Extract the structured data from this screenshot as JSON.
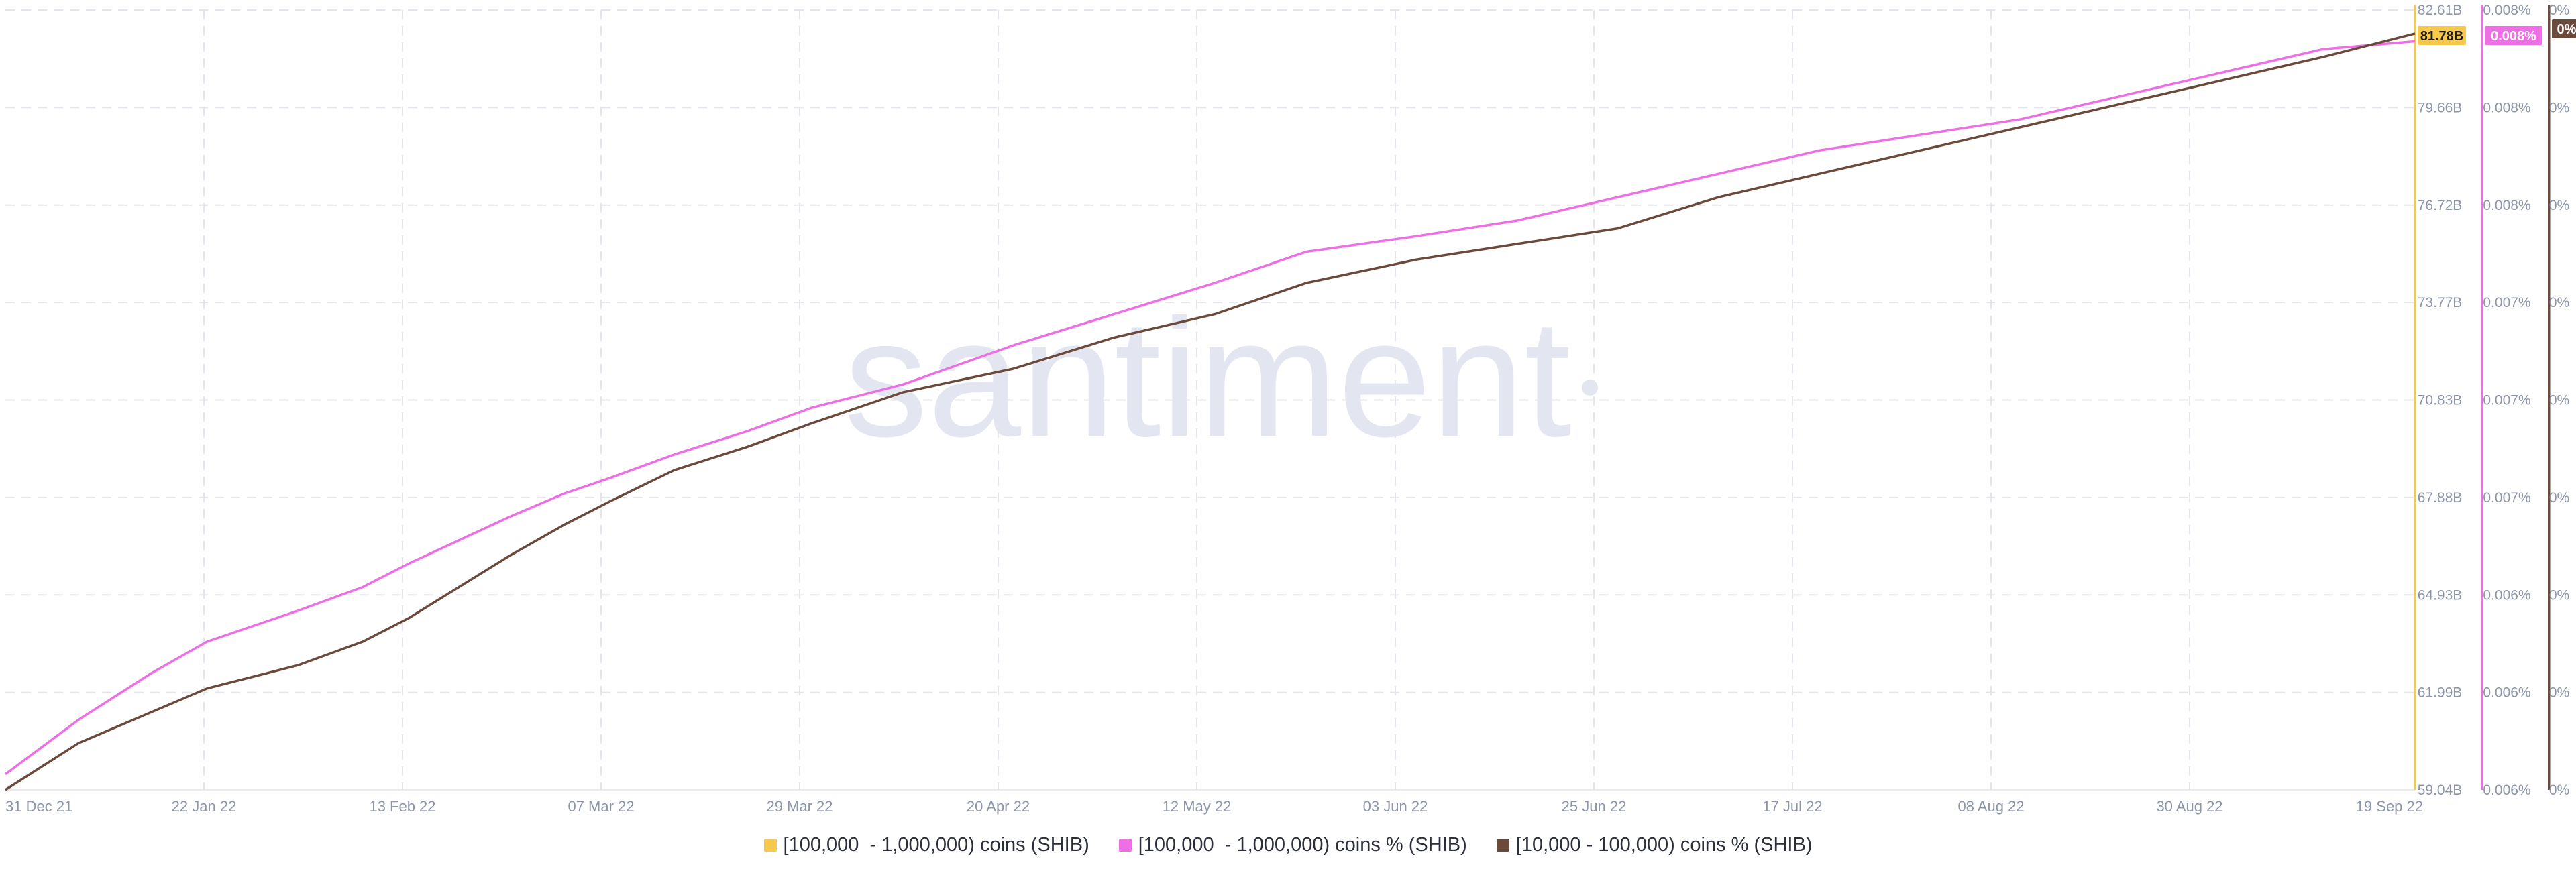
{
  "colors": {
    "background": "#ffffff",
    "grid": "#e4e6ec",
    "axis_text": "#8d95a9",
    "watermark": "#e3e6f0",
    "series_volume": "#f6c84c",
    "series_pct_large": "#ee6ee5",
    "series_pct_small": "#6b4a3c"
  },
  "watermark": "santiment",
  "legend": [
    {
      "label": "[100,000  - 1,000,000) coins (SHIB)",
      "color": "#f6c84c"
    },
    {
      "label": "[100,000  - 1,000,000) coins % (SHIB)",
      "color": "#ee6ee5"
    },
    {
      "label": "[10,000 - 100,000) coins % (SHIB)",
      "color": "#6b4a3c"
    }
  ],
  "chart_data": {
    "type": "line",
    "grid": true,
    "legend_position": "bottom-center",
    "x_ticks": [
      "31 Dec 21",
      "22 Jan 22",
      "13 Feb 22",
      "07 Mar 22",
      "29 Mar 22",
      "20 Apr 22",
      "12 May 22",
      "03 Jun 22",
      "25 Jun 22",
      "17 Jul 22",
      "08 Aug 22",
      "30 Aug 22",
      "19 Sep 22"
    ],
    "xlim": [
      "2021-12-31",
      "2022-09-20"
    ],
    "axes": [
      {
        "id": "volume",
        "ticks": [
          "82.61B",
          "79.66B",
          "76.72B",
          "73.77B",
          "70.83B",
          "67.88B",
          "64.93B",
          "61.99B",
          "59.04B"
        ],
        "ylim": [
          59.04,
          82.61
        ],
        "unit": "B",
        "current_value_label": "81.78B",
        "color": "#f6c84c"
      },
      {
        "id": "pct_large",
        "ticks": [
          "0.008%",
          "0.008%",
          "0.008%",
          "0.007%",
          "0.007%",
          "0.007%",
          "0.006%",
          "0.006%",
          "0.006%"
        ],
        "current_value_label": "0.008%",
        "color": "#ee6ee5"
      },
      {
        "id": "pct_small",
        "ticks": [
          "0%",
          "0%",
          "0%",
          "0%",
          "0%",
          "0%",
          "0%",
          "0%",
          "0%"
        ],
        "current_value_label": "0%",
        "color": "#6b4a3c"
      }
    ],
    "series": [
      {
        "name": "[100,000  - 1,000,000) coins % (SHIB)",
        "color": "#ee6ee5",
        "axis": "pct_large",
        "y_scale": "relative to chart height (0 = bottom, 1 = top)",
        "points": [
          [
            "2021-12-31",
            0.02
          ],
          [
            "2022-01-08",
            0.09
          ],
          [
            "2022-01-16",
            0.15
          ],
          [
            "2022-01-22",
            0.19
          ],
          [
            "2022-02-01",
            0.23
          ],
          [
            "2022-02-08",
            0.26
          ],
          [
            "2022-02-13",
            0.29
          ],
          [
            "2022-02-24",
            0.35
          ],
          [
            "2022-03-02",
            0.38
          ],
          [
            "2022-03-07",
            0.4
          ],
          [
            "2022-03-14",
            0.43
          ],
          [
            "2022-03-22",
            0.46
          ],
          [
            "2022-03-29",
            0.49
          ],
          [
            "2022-04-08",
            0.52
          ],
          [
            "2022-04-20",
            0.57
          ],
          [
            "2022-05-01",
            0.61
          ],
          [
            "2022-05-12",
            0.65
          ],
          [
            "2022-05-22",
            0.69
          ],
          [
            "2022-06-03",
            0.71
          ],
          [
            "2022-06-14",
            0.73
          ],
          [
            "2022-06-25",
            0.76
          ],
          [
            "2022-07-06",
            0.79
          ],
          [
            "2022-07-17",
            0.82
          ],
          [
            "2022-07-28",
            0.84
          ],
          [
            "2022-08-08",
            0.86
          ],
          [
            "2022-08-19",
            0.89
          ],
          [
            "2022-08-30",
            0.92
          ],
          [
            "2022-09-10",
            0.95
          ],
          [
            "2022-09-20",
            0.96
          ]
        ]
      },
      {
        "name": "[10,000 - 100,000) coins % (SHIB)",
        "color": "#6b4a3c",
        "axis": "pct_small",
        "y_scale": "relative to chart height (0 = bottom, 1 = top)",
        "points": [
          [
            "2021-12-31",
            0.0
          ],
          [
            "2022-01-08",
            0.06
          ],
          [
            "2022-01-16",
            0.1
          ],
          [
            "2022-01-22",
            0.13
          ],
          [
            "2022-02-01",
            0.16
          ],
          [
            "2022-02-08",
            0.19
          ],
          [
            "2022-02-13",
            0.22
          ],
          [
            "2022-02-24",
            0.3
          ],
          [
            "2022-03-02",
            0.34
          ],
          [
            "2022-03-07",
            0.37
          ],
          [
            "2022-03-14",
            0.41
          ],
          [
            "2022-03-22",
            0.44
          ],
          [
            "2022-03-29",
            0.47
          ],
          [
            "2022-04-08",
            0.51
          ],
          [
            "2022-04-20",
            0.54
          ],
          [
            "2022-05-01",
            0.58
          ],
          [
            "2022-05-12",
            0.61
          ],
          [
            "2022-05-22",
            0.65
          ],
          [
            "2022-06-03",
            0.68
          ],
          [
            "2022-06-14",
            0.7
          ],
          [
            "2022-06-25",
            0.72
          ],
          [
            "2022-07-06",
            0.76
          ],
          [
            "2022-07-17",
            0.79
          ],
          [
            "2022-07-28",
            0.82
          ],
          [
            "2022-08-08",
            0.85
          ],
          [
            "2022-08-19",
            0.88
          ],
          [
            "2022-08-30",
            0.91
          ],
          [
            "2022-09-10",
            0.94
          ],
          [
            "2022-09-20",
            0.97
          ]
        ]
      }
    ]
  }
}
